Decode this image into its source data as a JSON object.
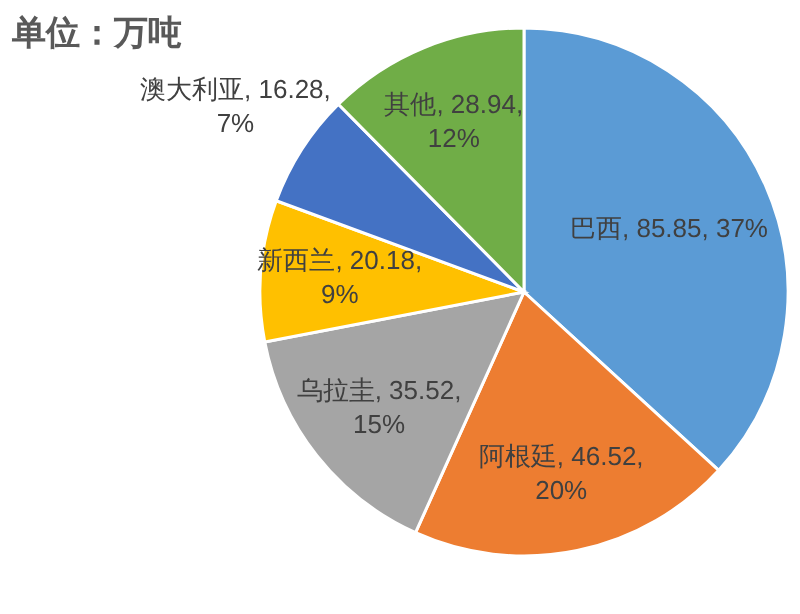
{
  "chart_data": {
    "type": "pie",
    "title": "单位：万吨",
    "categories": [
      "巴西",
      "阿根廷",
      "乌拉圭",
      "新西兰",
      "澳大利亚",
      "其他"
    ],
    "values": [
      85.85,
      46.52,
      35.52,
      20.18,
      16.28,
      28.94
    ],
    "colors": [
      "#5b9bd5",
      "#ed7d31",
      "#a5a5a5",
      "#ffc000",
      "#4472c4",
      "#70ad47"
    ],
    "value_labels": [
      "85.85, 37%",
      "46.52, 20%",
      "35.52, 15%",
      "20.18, 9%",
      "16.28, 7%",
      "28.94, 12%"
    ]
  }
}
